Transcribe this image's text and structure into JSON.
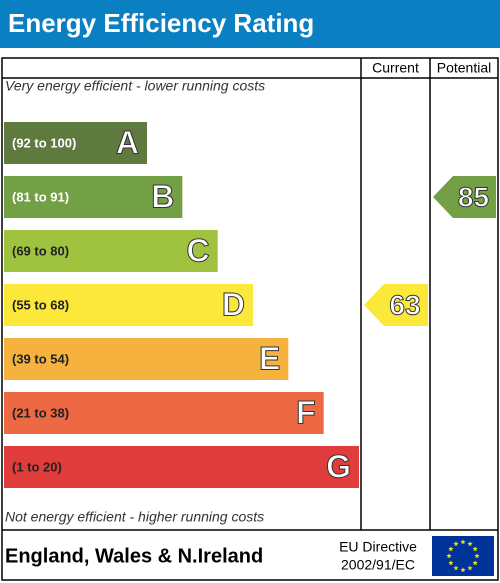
{
  "chart_data": {
    "type": "epc",
    "title": "Energy Efficiency Rating",
    "columns": [
      "Current",
      "Potential"
    ],
    "top_note": "Very energy efficient - lower running costs",
    "bottom_note": "Not energy efficient - higher running costs",
    "bands": [
      {
        "range": "(92 to 100)",
        "letter": "A",
        "color": "#5e7a3e",
        "text_color": "#ffffff"
      },
      {
        "range": "(81 to 91)",
        "letter": "B",
        "color": "#73a045",
        "text_color": "#ffffff"
      },
      {
        "range": "(69 to 80)",
        "letter": "C",
        "color": "#9fc33e",
        "text_color": "#222222"
      },
      {
        "range": "(55 to 68)",
        "letter": "D",
        "color": "#fbe83a",
        "text_color": "#222222"
      },
      {
        "range": "(39 to 54)",
        "letter": "E",
        "color": "#f5b23e",
        "text_color": "#222222"
      },
      {
        "range": "(21 to 38)",
        "letter": "F",
        "color": "#ed6943",
        "text_color": "#222222"
      },
      {
        "range": "(1 to 20)",
        "letter": "G",
        "color": "#e03c3c",
        "text_color": "#222222"
      }
    ],
    "current": {
      "value": 63,
      "color": "#fbe83a"
    },
    "potential": {
      "value": 85,
      "color": "#73a045"
    },
    "region": "England, Wales & N.Ireland",
    "directive": [
      "EU Directive",
      "2002/91/EC"
    ]
  }
}
